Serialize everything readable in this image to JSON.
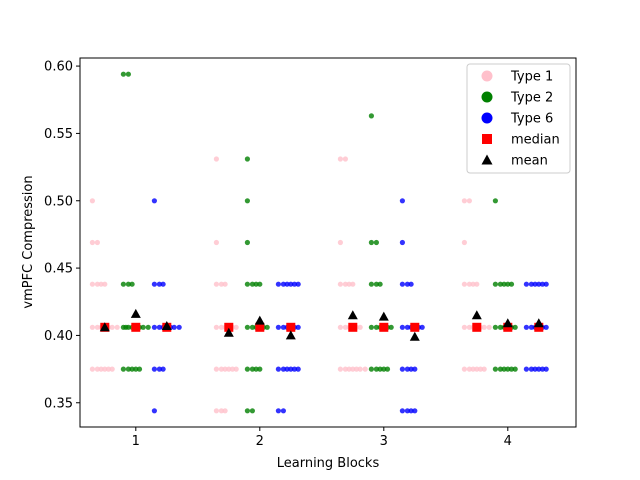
{
  "chart_data": {
    "type": "scatter",
    "xlabel": "Learning Blocks",
    "ylabel": "vmPFC Compression",
    "xlim": [
      0.55,
      4.55
    ],
    "ylim": [
      0.332,
      0.606
    ],
    "x_ticks": [
      1,
      2,
      3,
      4
    ],
    "x_tick_labels": [
      "1",
      "2",
      "3",
      "4"
    ],
    "y_ticks": [
      0.35,
      0.4,
      0.45,
      0.5,
      0.55,
      0.6
    ],
    "y_tick_labels": [
      "0.35",
      "0.40",
      "0.45",
      "0.50",
      "0.55",
      "0.60"
    ],
    "grid": false,
    "legend_position": "top-right",
    "series": [
      {
        "name": "Type 1",
        "color": "#ffc0cb",
        "offset": -0.25,
        "points": [
          {
            "block": 1,
            "values": [
              0.5,
              0.469,
              0.469,
              0.438,
              0.438,
              0.438,
              0.438,
              0.406,
              0.406,
              0.406,
              0.406,
              0.406,
              0.406,
              0.406,
              0.375,
              0.375,
              0.375,
              0.375,
              0.375,
              0.375
            ]
          },
          {
            "block": 2,
            "values": [
              0.531,
              0.469,
              0.438,
              0.438,
              0.438,
              0.406,
              0.406,
              0.406,
              0.406,
              0.406,
              0.406,
              0.375,
              0.375,
              0.375,
              0.375,
              0.375,
              0.375,
              0.344,
              0.344,
              0.344
            ]
          },
          {
            "block": 3,
            "values": [
              0.531,
              0.531,
              0.469,
              0.438,
              0.438,
              0.438,
              0.438,
              0.406,
              0.406,
              0.406,
              0.406,
              0.406,
              0.406,
              0.375,
              0.375,
              0.375,
              0.375,
              0.375,
              0.375,
              0.375
            ]
          },
          {
            "block": 4,
            "values": [
              0.5,
              0.5,
              0.469,
              0.438,
              0.438,
              0.438,
              0.438,
              0.406,
              0.406,
              0.406,
              0.406,
              0.406,
              0.406,
              0.406,
              0.375,
              0.375,
              0.375,
              0.375,
              0.375,
              0.375
            ]
          }
        ],
        "median": [
          0.406,
          0.406,
          0.406,
          0.406
        ],
        "mean": [
          0.406,
          0.402,
          0.415,
          0.415
        ]
      },
      {
        "name": "Type 2",
        "color": "#008000",
        "offset": 0,
        "points": [
          {
            "block": 1,
            "values": [
              0.594,
              0.594,
              0.438,
              0.438,
              0.438,
              0.406,
              0.406,
              0.406,
              0.406,
              0.406,
              0.406,
              0.406,
              0.406,
              0.375,
              0.375,
              0.375,
              0.375,
              0.375
            ]
          },
          {
            "block": 2,
            "values": [
              0.531,
              0.5,
              0.469,
              0.438,
              0.438,
              0.438,
              0.438,
              0.406,
              0.406,
              0.406,
              0.406,
              0.406,
              0.406,
              0.375,
              0.375,
              0.375,
              0.375,
              0.344,
              0.344
            ]
          },
          {
            "block": 3,
            "values": [
              0.563,
              0.469,
              0.469,
              0.438,
              0.438,
              0.438,
              0.406,
              0.406,
              0.406,
              0.406,
              0.406,
              0.406,
              0.375,
              0.375,
              0.375,
              0.375,
              0.375
            ]
          },
          {
            "block": 4,
            "values": [
              0.5,
              0.438,
              0.438,
              0.438,
              0.438,
              0.438,
              0.406,
              0.406,
              0.406,
              0.406,
              0.406,
              0.406,
              0.375,
              0.375,
              0.375,
              0.375,
              0.375,
              0.375
            ]
          }
        ],
        "median": [
          0.406,
          0.406,
          0.406,
          0.406
        ],
        "mean": [
          0.416,
          0.411,
          0.414,
          0.409
        ]
      },
      {
        "name": "Type 6",
        "color": "#0000ff",
        "offset": 0.25,
        "points": [
          {
            "block": 1,
            "values": [
              0.5,
              0.438,
              0.438,
              0.438,
              0.406,
              0.406,
              0.406,
              0.406,
              0.406,
              0.406,
              0.406,
              0.375,
              0.375,
              0.375,
              0.344
            ]
          },
          {
            "block": 2,
            "values": [
              0.438,
              0.438,
              0.438,
              0.438,
              0.438,
              0.438,
              0.406,
              0.406,
              0.406,
              0.406,
              0.406,
              0.406,
              0.375,
              0.375,
              0.375,
              0.375,
              0.375,
              0.375,
              0.344,
              0.344
            ]
          },
          {
            "block": 3,
            "values": [
              0.5,
              0.469,
              0.438,
              0.438,
              0.438,
              0.406,
              0.406,
              0.406,
              0.406,
              0.406,
              0.406,
              0.375,
              0.375,
              0.375,
              0.375,
              0.344,
              0.344,
              0.344,
              0.344
            ]
          },
          {
            "block": 4,
            "values": [
              0.438,
              0.438,
              0.438,
              0.438,
              0.438,
              0.438,
              0.406,
              0.406,
              0.406,
              0.406,
              0.406,
              0.406,
              0.375,
              0.375,
              0.375,
              0.375,
              0.375,
              0.375
            ]
          }
        ],
        "median": [
          0.406,
          0.406,
          0.406,
          0.406
        ],
        "mean": [
          0.407,
          0.4,
          0.399,
          0.409
        ]
      }
    ],
    "legend": [
      {
        "label": "Type 1",
        "marker": "circle",
        "color": "#ffc0cb"
      },
      {
        "label": "Type 2",
        "marker": "circle",
        "color": "#008000"
      },
      {
        "label": "Type 6",
        "marker": "circle",
        "color": "#0000ff"
      },
      {
        "label": "median",
        "marker": "square",
        "color": "#ff0000"
      },
      {
        "label": "mean",
        "marker": "triangle",
        "color": "#000000"
      }
    ]
  }
}
